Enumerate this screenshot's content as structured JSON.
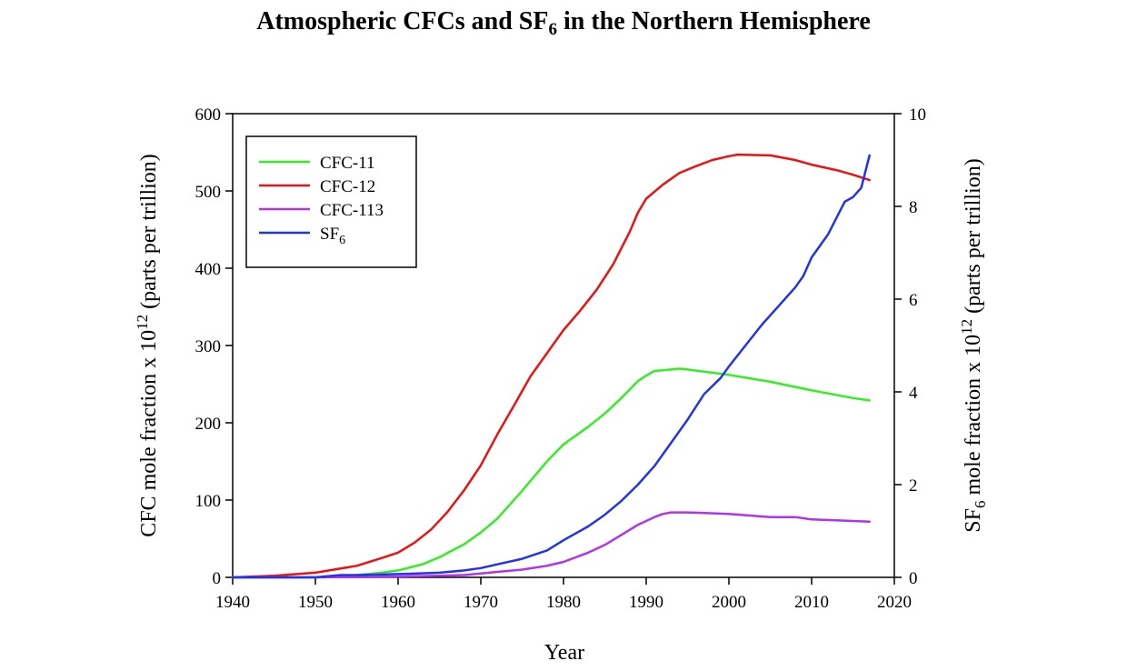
{
  "chart_data": {
    "type": "line",
    "title": "Atmospheric CFCs and SF",
    "title_sub": "6",
    "title_tail": " in the Northern Hemisphere",
    "xlabel": "Year",
    "ylabel": "CFC mole fraction x 10",
    "ylabel_sup": "12",
    "ylabel_tail": " (parts per trillion)",
    "y2label": "SF",
    "y2label_sub": "6",
    "y2label_tail": "  mole fraction x 10",
    "y2label_sup": "12",
    "y2label_tail2": " (parts per trillion)",
    "xlim": [
      1940,
      2020
    ],
    "ylim": [
      0,
      600
    ],
    "y2lim": [
      0,
      10
    ],
    "xticks": [
      "1940",
      "1950",
      "1960",
      "1970",
      "1980",
      "1990",
      "2000",
      "2010",
      "2020"
    ],
    "yticks": [
      "0",
      "100",
      "200",
      "300",
      "400",
      "500",
      "600"
    ],
    "y2ticks": [
      "0",
      "2",
      "4",
      "6",
      "8",
      "10"
    ],
    "grid": false,
    "legend_position": "top-left",
    "series": [
      {
        "name": "CFC-11",
        "name_sub": "",
        "color": "#33ee22",
        "axis": "left",
        "x": [
          1940,
          1945,
          1950,
          1953,
          1955,
          1958,
          1960,
          1963,
          1965,
          1968,
          1970,
          1972,
          1975,
          1978,
          1980,
          1983,
          1985,
          1987,
          1989,
          1990,
          1991,
          1992,
          1994,
          1995,
          2000,
          2005,
          2010,
          2015,
          2017
        ],
        "values": [
          0,
          0,
          0,
          1,
          3,
          6,
          9,
          17,
          26,
          43,
          58,
          76,
          112,
          150,
          172,
          195,
          212,
          232,
          254,
          261,
          267,
          268,
          270,
          269,
          262,
          253,
          242,
          232,
          229
        ]
      },
      {
        "name": "CFC-12",
        "name_sub": "",
        "color": "#ee1111",
        "axis": "left",
        "x": [
          1940,
          1945,
          1950,
          1955,
          1958,
          1960,
          1962,
          1964,
          1966,
          1968,
          1970,
          1972,
          1974,
          1976,
          1978,
          1980,
          1982,
          1984,
          1986,
          1988,
          1989,
          1990,
          1992,
          1994,
          1996,
          1998,
          2000,
          2001,
          2005,
          2008,
          2010,
          2013,
          2015,
          2017
        ],
        "values": [
          0,
          2,
          6,
          15,
          25,
          32,
          45,
          62,
          85,
          113,
          145,
          185,
          222,
          260,
          290,
          320,
          345,
          372,
          405,
          447,
          472,
          490,
          508,
          523,
          532,
          540,
          545,
          547,
          546,
          540,
          534,
          527,
          521,
          514
        ]
      },
      {
        "name": "CFC-113",
        "name_sub": "",
        "color": "#b033ee",
        "axis": "left",
        "x": [
          1940,
          1950,
          1960,
          1965,
          1968,
          1970,
          1972,
          1975,
          1978,
          1980,
          1983,
          1985,
          1987,
          1989,
          1990,
          1991,
          1992,
          1993,
          1995,
          2000,
          2005,
          2008,
          2010,
          2015,
          2017
        ],
        "values": [
          0,
          0,
          1,
          2,
          3,
          5,
          7,
          10,
          15,
          20,
          32,
          42,
          55,
          68,
          73,
          78,
          82,
          84,
          84,
          82,
          78,
          78,
          75,
          73,
          72
        ]
      },
      {
        "name": "SF",
        "name_sub": "6",
        "color": "#2233ee",
        "axis": "right",
        "x": [
          1940,
          1950,
          1953,
          1955,
          1958,
          1960,
          1962,
          1965,
          1968,
          1970,
          1972,
          1975,
          1978,
          1980,
          1983,
          1985,
          1987,
          1989,
          1991,
          1993,
          1995,
          1997,
          1999,
          2000,
          2002,
          2004,
          2006,
          2008,
          2009,
          2010,
          2012,
          2014,
          2015,
          2016,
          2017
        ],
        "values": [
          0,
          0,
          0.05,
          0.05,
          0.06,
          0.07,
          0.08,
          0.1,
          0.15,
          0.2,
          0.28,
          0.4,
          0.58,
          0.8,
          1.1,
          1.35,
          1.65,
          2.0,
          2.4,
          2.9,
          3.4,
          3.95,
          4.3,
          4.55,
          5.0,
          5.45,
          5.85,
          6.25,
          6.5,
          6.9,
          7.4,
          8.1,
          8.2,
          8.4,
          9.1
        ]
      }
    ]
  }
}
